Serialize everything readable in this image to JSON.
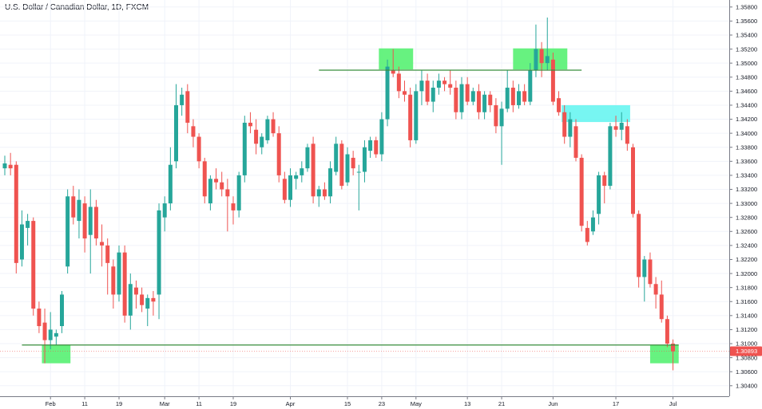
{
  "title": "U.S. Dollar / Canadian Dollar, 1D, FXCM",
  "colors": {
    "up": "#26a69a",
    "down": "#ef5350",
    "level_line": "#388e3c",
    "green_zone": "#4cf06a",
    "cyan_zone": "#5ff5f0",
    "price_tag": "#ef5350",
    "grid": "#f0f3fa",
    "axis": "#787b86"
  },
  "chart_data": {
    "type": "candlestick",
    "symbol": "USDCAD",
    "timeframe": "1D",
    "ylim": [
      1.3025,
      1.359
    ],
    "y_ticks": [
      "1.35800",
      "1.35600",
      "1.35400",
      "1.35200",
      "1.35000",
      "1.34800",
      "1.34600",
      "1.34400",
      "1.34200",
      "1.34000",
      "1.33800",
      "1.33600",
      "1.33400",
      "1.33200",
      "1.33000",
      "1.32800",
      "1.32600",
      "1.32400",
      "1.32200",
      "1.32000",
      "1.31800",
      "1.31600",
      "1.31400",
      "1.31200",
      "1.31000",
      "1.30800",
      "1.30600",
      "1.30400"
    ],
    "x_ticks": [
      {
        "label": "Feb",
        "index": 8
      },
      {
        "label": "11",
        "index": 14
      },
      {
        "label": "19",
        "index": 20
      },
      {
        "label": "Mar",
        "index": 28
      },
      {
        "label": "11",
        "index": 34
      },
      {
        "label": "19",
        "index": 40
      },
      {
        "label": "Apr",
        "index": 50
      },
      {
        "label": "15",
        "index": 60
      },
      {
        "label": "23",
        "index": 66
      },
      {
        "label": "May",
        "index": 72
      },
      {
        "label": "13",
        "index": 81
      },
      {
        "label": "21",
        "index": 87
      },
      {
        "label": "Jun",
        "index": 96
      },
      {
        "label": "17",
        "index": 107
      },
      {
        "label": "Jul",
        "index": 117
      }
    ],
    "current_price": "1.30893",
    "levels": [
      {
        "price": 1.349,
        "from_index": 55,
        "to_index": 101
      },
      {
        "price": 1.3098,
        "from_index": 3,
        "to_index": 118
      }
    ],
    "zones": [
      {
        "color": "green",
        "from_index": 6.5,
        "to_index": 11.5,
        "top": 1.3098,
        "bottom": 1.3072
      },
      {
        "color": "green",
        "from_index": 65.5,
        "to_index": 71.5,
        "top": 1.3521,
        "bottom": 1.3491
      },
      {
        "color": "green",
        "from_index": 89,
        "to_index": 98.5,
        "top": 1.3521,
        "bottom": 1.3491
      },
      {
        "color": "cyan",
        "from_index": 97.5,
        "to_index": 109.5,
        "top": 1.344,
        "bottom": 1.3416
      },
      {
        "color": "green",
        "from_index": 113,
        "to_index": 118,
        "top": 1.3098,
        "bottom": 1.3072
      }
    ],
    "candles": [
      {
        "o": 1.335,
        "h": 1.3368,
        "l": 1.334,
        "c": 1.3357
      },
      {
        "o": 1.3355,
        "h": 1.3372,
        "l": 1.334,
        "c": 1.335
      },
      {
        "o": 1.3355,
        "h": 1.336,
        "l": 1.32,
        "c": 1.3215
      },
      {
        "o": 1.322,
        "h": 1.329,
        "l": 1.321,
        "c": 1.327
      },
      {
        "o": 1.3265,
        "h": 1.3285,
        "l": 1.324,
        "c": 1.3275
      },
      {
        "o": 1.3275,
        "h": 1.328,
        "l": 1.314,
        "c": 1.315
      },
      {
        "o": 1.315,
        "h": 1.316,
        "l": 1.3115,
        "c": 1.3125
      },
      {
        "o": 1.313,
        "h": 1.315,
        "l": 1.3072,
        "c": 1.3105
      },
      {
        "o": 1.3105,
        "h": 1.3145,
        "l": 1.3092,
        "c": 1.312
      },
      {
        "o": 1.311,
        "h": 1.312,
        "l": 1.3098,
        "c": 1.3115
      },
      {
        "o": 1.3125,
        "h": 1.3175,
        "l": 1.3115,
        "c": 1.317
      },
      {
        "o": 1.321,
        "h": 1.332,
        "l": 1.32,
        "c": 1.331
      },
      {
        "o": 1.331,
        "h": 1.3325,
        "l": 1.327,
        "c": 1.328
      },
      {
        "o": 1.3275,
        "h": 1.332,
        "l": 1.325,
        "c": 1.3305
      },
      {
        "o": 1.33,
        "h": 1.331,
        "l": 1.323,
        "c": 1.325
      },
      {
        "o": 1.3255,
        "h": 1.332,
        "l": 1.32,
        "c": 1.3295
      },
      {
        "o": 1.3295,
        "h": 1.3305,
        "l": 1.324,
        "c": 1.325
      },
      {
        "o": 1.3245,
        "h": 1.327,
        "l": 1.321,
        "c": 1.324
      },
      {
        "o": 1.324,
        "h": 1.325,
        "l": 1.317,
        "c": 1.3215
      },
      {
        "o": 1.321,
        "h": 1.322,
        "l": 1.315,
        "c": 1.317
      },
      {
        "o": 1.317,
        "h": 1.324,
        "l": 1.316,
        "c": 1.323
      },
      {
        "o": 1.323,
        "h": 1.324,
        "l": 1.313,
        "c": 1.314
      },
      {
        "o": 1.314,
        "h": 1.32,
        "l": 1.312,
        "c": 1.3185
      },
      {
        "o": 1.318,
        "h": 1.319,
        "l": 1.315,
        "c": 1.317
      },
      {
        "o": 1.317,
        "h": 1.318,
        "l": 1.3145,
        "c": 1.3155
      },
      {
        "o": 1.315,
        "h": 1.317,
        "l": 1.3125,
        "c": 1.3165
      },
      {
        "o": 1.3165,
        "h": 1.3175,
        "l": 1.314,
        "c": 1.316
      },
      {
        "o": 1.317,
        "h": 1.33,
        "l": 1.3135,
        "c": 1.329
      },
      {
        "o": 1.328,
        "h": 1.331,
        "l": 1.326,
        "c": 1.33
      },
      {
        "o": 1.33,
        "h": 1.338,
        "l": 1.329,
        "c": 1.3355
      },
      {
        "o": 1.336,
        "h": 1.347,
        "l": 1.335,
        "c": 1.344
      },
      {
        "o": 1.344,
        "h": 1.3465,
        "l": 1.3425,
        "c": 1.3455
      },
      {
        "o": 1.346,
        "h": 1.347,
        "l": 1.34,
        "c": 1.3415
      },
      {
        "o": 1.341,
        "h": 1.342,
        "l": 1.338,
        "c": 1.3395
      },
      {
        "o": 1.3395,
        "h": 1.34,
        "l": 1.335,
        "c": 1.336
      },
      {
        "o": 1.336,
        "h": 1.3365,
        "l": 1.33,
        "c": 1.331
      },
      {
        "o": 1.33,
        "h": 1.334,
        "l": 1.329,
        "c": 1.3335
      },
      {
        "o": 1.3335,
        "h": 1.335,
        "l": 1.332,
        "c": 1.333
      },
      {
        "o": 1.333,
        "h": 1.3345,
        "l": 1.331,
        "c": 1.332
      },
      {
        "o": 1.332,
        "h": 1.3335,
        "l": 1.326,
        "c": 1.331
      },
      {
        "o": 1.33,
        "h": 1.331,
        "l": 1.327,
        "c": 1.329
      },
      {
        "o": 1.329,
        "h": 1.3345,
        "l": 1.328,
        "c": 1.334
      },
      {
        "o": 1.334,
        "h": 1.3425,
        "l": 1.333,
        "c": 1.3415
      },
      {
        "o": 1.3415,
        "h": 1.343,
        "l": 1.34,
        "c": 1.341
      },
      {
        "o": 1.3405,
        "h": 1.342,
        "l": 1.337,
        "c": 1.3385
      },
      {
        "o": 1.338,
        "h": 1.34,
        "l": 1.337,
        "c": 1.3395
      },
      {
        "o": 1.339,
        "h": 1.3425,
        "l": 1.3385,
        "c": 1.342
      },
      {
        "o": 1.342,
        "h": 1.343,
        "l": 1.3395,
        "c": 1.34
      },
      {
        "o": 1.34,
        "h": 1.341,
        "l": 1.333,
        "c": 1.334
      },
      {
        "o": 1.3335,
        "h": 1.3345,
        "l": 1.33,
        "c": 1.3305
      },
      {
        "o": 1.3305,
        "h": 1.335,
        "l": 1.3295,
        "c": 1.334
      },
      {
        "o": 1.3335,
        "h": 1.3345,
        "l": 1.332,
        "c": 1.334
      },
      {
        "o": 1.334,
        "h": 1.336,
        "l": 1.333,
        "c": 1.335
      },
      {
        "o": 1.335,
        "h": 1.3385,
        "l": 1.3345,
        "c": 1.338
      },
      {
        "o": 1.3385,
        "h": 1.3395,
        "l": 1.33,
        "c": 1.331
      },
      {
        "o": 1.331,
        "h": 1.3325,
        "l": 1.3295,
        "c": 1.332
      },
      {
        "o": 1.332,
        "h": 1.333,
        "l": 1.3305,
        "c": 1.331
      },
      {
        "o": 1.331,
        "h": 1.336,
        "l": 1.33,
        "c": 1.335
      },
      {
        "o": 1.3345,
        "h": 1.3395,
        "l": 1.334,
        "c": 1.3385
      },
      {
        "o": 1.3385,
        "h": 1.339,
        "l": 1.332,
        "c": 1.3325
      },
      {
        "o": 1.333,
        "h": 1.338,
        "l": 1.3325,
        "c": 1.337
      },
      {
        "o": 1.3365,
        "h": 1.3375,
        "l": 1.334,
        "c": 1.335
      },
      {
        "o": 1.3345,
        "h": 1.3355,
        "l": 1.329,
        "c": 1.3345
      },
      {
        "o": 1.3345,
        "h": 1.339,
        "l": 1.333,
        "c": 1.338
      },
      {
        "o": 1.3375,
        "h": 1.3395,
        "l": 1.3365,
        "c": 1.339
      },
      {
        "o": 1.339,
        "h": 1.3395,
        "l": 1.3365,
        "c": 1.337
      },
      {
        "o": 1.337,
        "h": 1.343,
        "l": 1.336,
        "c": 1.342
      },
      {
        "o": 1.342,
        "h": 1.3505,
        "l": 1.341,
        "c": 1.3495
      },
      {
        "o": 1.349,
        "h": 1.352,
        "l": 1.348,
        "c": 1.3485
      },
      {
        "o": 1.3485,
        "h": 1.3495,
        "l": 1.345,
        "c": 1.346
      },
      {
        "o": 1.346,
        "h": 1.3475,
        "l": 1.3445,
        "c": 1.3455
      },
      {
        "o": 1.3455,
        "h": 1.3465,
        "l": 1.338,
        "c": 1.339
      },
      {
        "o": 1.339,
        "h": 1.347,
        "l": 1.3385,
        "c": 1.346
      },
      {
        "o": 1.346,
        "h": 1.349,
        "l": 1.344,
        "c": 1.3475
      },
      {
        "o": 1.3475,
        "h": 1.3485,
        "l": 1.344,
        "c": 1.3445
      },
      {
        "o": 1.3445,
        "h": 1.3475,
        "l": 1.343,
        "c": 1.3465
      },
      {
        "o": 1.3465,
        "h": 1.3485,
        "l": 1.3455,
        "c": 1.3475
      },
      {
        "o": 1.3475,
        "h": 1.348,
        "l": 1.346,
        "c": 1.347
      },
      {
        "o": 1.347,
        "h": 1.349,
        "l": 1.3455,
        "c": 1.3465
      },
      {
        "o": 1.3465,
        "h": 1.3475,
        "l": 1.342,
        "c": 1.343
      },
      {
        "o": 1.343,
        "h": 1.348,
        "l": 1.342,
        "c": 1.347
      },
      {
        "o": 1.347,
        "h": 1.348,
        "l": 1.344,
        "c": 1.3445
      },
      {
        "o": 1.3445,
        "h": 1.3465,
        "l": 1.344,
        "c": 1.346
      },
      {
        "o": 1.346,
        "h": 1.347,
        "l": 1.342,
        "c": 1.343
      },
      {
        "o": 1.343,
        "h": 1.346,
        "l": 1.342,
        "c": 1.3455
      },
      {
        "o": 1.3455,
        "h": 1.346,
        "l": 1.343,
        "c": 1.344
      },
      {
        "o": 1.344,
        "h": 1.345,
        "l": 1.34,
        "c": 1.341
      },
      {
        "o": 1.341,
        "h": 1.3445,
        "l": 1.3355,
        "c": 1.3435
      },
      {
        "o": 1.3435,
        "h": 1.349,
        "l": 1.343,
        "c": 1.3465
      },
      {
        "o": 1.3465,
        "h": 1.3475,
        "l": 1.343,
        "c": 1.344
      },
      {
        "o": 1.344,
        "h": 1.347,
        "l": 1.3435,
        "c": 1.346
      },
      {
        "o": 1.346,
        "h": 1.347,
        "l": 1.344,
        "c": 1.3445
      },
      {
        "o": 1.3445,
        "h": 1.35,
        "l": 1.344,
        "c": 1.349
      },
      {
        "o": 1.349,
        "h": 1.3555,
        "l": 1.348,
        "c": 1.352
      },
      {
        "o": 1.352,
        "h": 1.353,
        "l": 1.348,
        "c": 1.35
      },
      {
        "o": 1.35,
        "h": 1.3565,
        "l": 1.349,
        "c": 1.351
      },
      {
        "o": 1.3505,
        "h": 1.3515,
        "l": 1.344,
        "c": 1.3445
      },
      {
        "o": 1.345,
        "h": 1.346,
        "l": 1.3425,
        "c": 1.343
      },
      {
        "o": 1.343,
        "h": 1.344,
        "l": 1.3385,
        "c": 1.3395
      },
      {
        "o": 1.3395,
        "h": 1.343,
        "l": 1.338,
        "c": 1.342
      },
      {
        "o": 1.341,
        "h": 1.342,
        "l": 1.336,
        "c": 1.3365
      },
      {
        "o": 1.3365,
        "h": 1.337,
        "l": 1.326,
        "c": 1.3268
      },
      {
        "o": 1.3265,
        "h": 1.3275,
        "l": 1.324,
        "c": 1.3245
      },
      {
        "o": 1.326,
        "h": 1.329,
        "l": 1.3255,
        "c": 1.328
      },
      {
        "o": 1.3285,
        "h": 1.3345,
        "l": 1.327,
        "c": 1.334
      },
      {
        "o": 1.334,
        "h": 1.3345,
        "l": 1.33,
        "c": 1.3325
      },
      {
        "o": 1.3325,
        "h": 1.3415,
        "l": 1.332,
        "c": 1.341
      },
      {
        "o": 1.341,
        "h": 1.3425,
        "l": 1.3395,
        "c": 1.3405
      },
      {
        "o": 1.3405,
        "h": 1.343,
        "l": 1.339,
        "c": 1.3415
      },
      {
        "o": 1.341,
        "h": 1.342,
        "l": 1.3375,
        "c": 1.3385
      },
      {
        "o": 1.338,
        "h": 1.3385,
        "l": 1.328,
        "c": 1.3285
      },
      {
        "o": 1.3285,
        "h": 1.329,
        "l": 1.318,
        "c": 1.3195
      },
      {
        "o": 1.3195,
        "h": 1.3225,
        "l": 1.316,
        "c": 1.322
      },
      {
        "o": 1.322,
        "h": 1.323,
        "l": 1.318,
        "c": 1.3185
      },
      {
        "o": 1.3185,
        "h": 1.3195,
        "l": 1.315,
        "c": 1.317
      },
      {
        "o": 1.317,
        "h": 1.319,
        "l": 1.313,
        "c": 1.3135
      },
      {
        "o": 1.3135,
        "h": 1.314,
        "l": 1.3095,
        "c": 1.31
      },
      {
        "o": 1.31,
        "h": 1.3106,
        "l": 1.3062,
        "c": 1.3089
      }
    ]
  }
}
